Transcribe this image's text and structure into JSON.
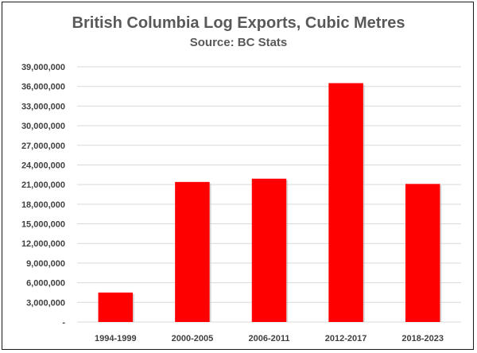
{
  "chart_data": {
    "type": "bar",
    "title": "British Columbia Log Exports, Cubic Metres",
    "subtitle": "Source: BC Stats",
    "xlabel": "",
    "ylabel": "",
    "categories": [
      "1994-1999",
      "2000-2005",
      "2006-2011",
      "2012-2017",
      "2018-2023"
    ],
    "values": [
      4500000,
      21400000,
      21900000,
      36500000,
      21100000
    ],
    "ylim": [
      0,
      39000000
    ],
    "yticks": [
      0,
      3000000,
      6000000,
      9000000,
      12000000,
      15000000,
      18000000,
      21000000,
      24000000,
      27000000,
      30000000,
      33000000,
      36000000,
      39000000
    ],
    "ytick_labels": [
      "-",
      "3,000,000",
      "6,000,000",
      "9,000,000",
      "12,000,000",
      "15,000,000",
      "18,000,000",
      "21,000,000",
      "24,000,000",
      "27,000,000",
      "30,000,000",
      "33,000,000",
      "36,000,000",
      "39,000,000"
    ],
    "grid": true,
    "legend": "none",
    "bar_color": "#ff0000",
    "grid_color": "#d9d9d9"
  }
}
